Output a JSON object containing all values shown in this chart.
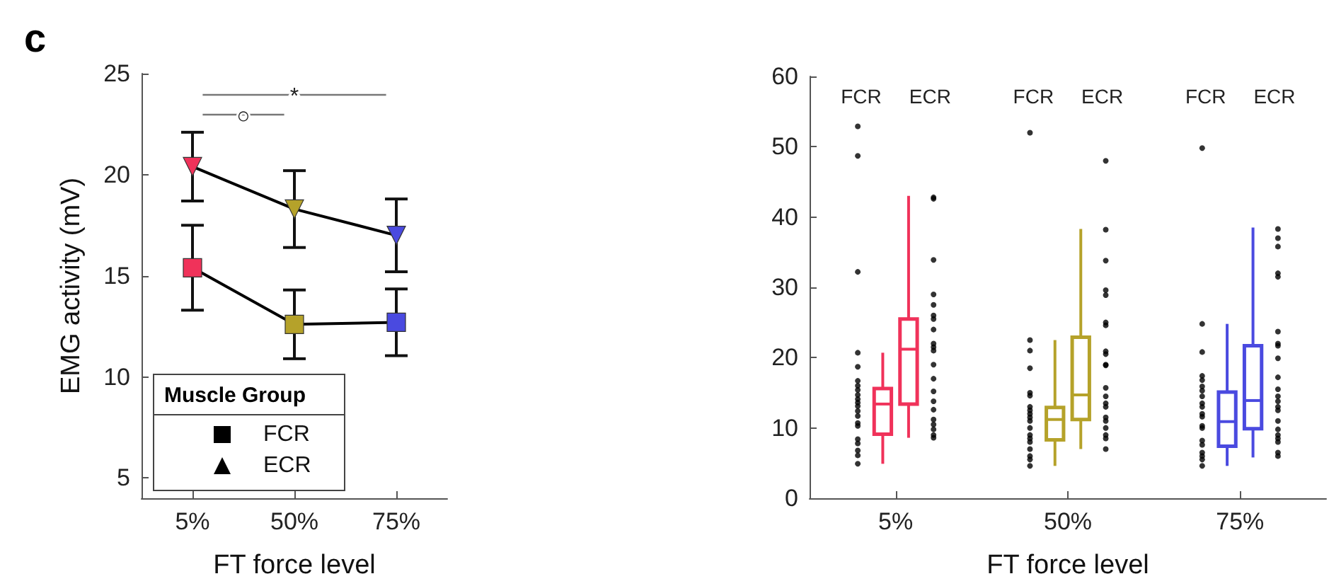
{
  "chart_data": [
    {
      "type": "line",
      "title": "c",
      "categories": [
        "5%",
        "50%",
        "75%"
      ],
      "xlabel": "FT force level",
      "ylabel": "EMG activity (mV)",
      "ylim": [
        4,
        25
      ],
      "yticks": [
        5,
        10,
        15,
        20,
        25
      ],
      "grid": false,
      "legend": "bottom left",
      "legend_title": "Muscle Group",
      "line_style": "solid",
      "annotations": [
        "*",
        "○"
      ],
      "series": [
        {
          "name": "FCR",
          "marker": "square",
          "color": "#000000",
          "colors": [
            "#f0325a",
            "#b5a22a",
            "#4a4ae0"
          ],
          "values": [
            15.4,
            12.6,
            12.7
          ],
          "errors": [
            2.1,
            1.7,
            1.65
          ]
        },
        {
          "name": "ECR",
          "marker": "triangle",
          "color": "#000000",
          "colors": [
            "#f0325a",
            "#b5a22a",
            "#4a4ae0"
          ],
          "values": [
            20.4,
            18.3,
            17.0
          ],
          "errors": [
            1.7,
            1.9,
            1.8
          ]
        }
      ]
    },
    {
      "type": "box",
      "categories": [
        "5%",
        "50%",
        "75%"
      ],
      "xlabel": "FT force level",
      "annotations": [
        "FCR",
        "ECR",
        "FCR",
        "ECR",
        "FCR",
        "ECR"
      ],
      "ylim": [
        0,
        60
      ],
      "yticks": [
        0,
        10,
        20,
        30,
        40,
        50,
        60
      ],
      "grid": false,
      "legend": false,
      "series": [
        {
          "colors": [
            "#f0325a",
            "#b5a22a",
            "#4a4ae0"
          ],
          "boxes": [
            {
              "low": 4.9,
              "q1": 9.1,
              "median": 13.4,
              "q3": 15.6,
              "high": 20.7
            },
            {
              "low": 4.6,
              "q1": 8.3,
              "median": 11.2,
              "q3": 12.9,
              "high": 22.5
            },
            {
              "low": 4.6,
              "q1": 7.4,
              "median": 10.9,
              "q3": 15.1,
              "high": 24.8
            }
          ]
        },
        {
          "colors": [
            "#f0325a",
            "#b5a22a",
            "#4a4ae0"
          ],
          "boxes": [
            {
              "low": 8.6,
              "q1": 13.4,
              "median": 21.2,
              "q3": 25.5,
              "high": 43.0
            },
            {
              "low": 7.0,
              "q1": 11.2,
              "median": 14.7,
              "q3": 22.9,
              "high": 38.3
            },
            {
              "low": 5.8,
              "q1": 9.9,
              "median": 13.9,
              "q3": 21.7,
              "high": 38.5
            }
          ]
        },
        {
          "type": "scatter",
          "color": "#000000",
          "x": [
            "5%",
            "5%",
            "5%",
            "5%",
            "5%",
            "5%",
            "5%",
            "5%",
            "5%",
            "5%",
            "5%",
            "5%",
            "5%",
            "5%",
            "5%",
            "5%",
            "5%",
            "5%",
            "5%",
            "5%",
            "5%",
            "50%",
            "50%",
            "50%",
            "50%",
            "50%",
            "50%",
            "50%",
            "50%",
            "50%",
            "50%",
            "50%",
            "50%",
            "50%",
            "50%",
            "50%",
            "50%",
            "50%",
            "50%",
            "50%",
            "75%",
            "75%",
            "75%",
            "75%",
            "75%",
            "75%",
            "75%",
            "75%",
            "75%",
            "75%",
            "75%",
            "75%",
            "75%",
            "75%",
            "75%",
            "75%",
            "75%",
            "75%",
            "75%",
            "75%"
          ],
          "values": [
            52.9,
            48.7,
            32.2,
            20.7,
            18.7,
            16.7,
            16.0,
            15.4,
            14.7,
            14.1,
            13.6,
            13.1,
            12.4,
            11.7,
            10.7,
            10.3,
            8.4,
            7.8,
            6.8,
            6.1,
            4.9,
            52,
            22.5,
            21,
            18.5,
            15,
            14.6,
            13,
            12.5,
            12,
            11.5,
            11,
            10,
            9,
            8.5,
            8,
            7,
            6,
            5.5,
            4.6,
            49.8,
            24.8,
            20.8,
            17.4,
            16.8,
            15.9,
            15.3,
            14.5,
            13.5,
            13,
            12,
            11.6,
            10.3,
            10,
            8.2,
            7.6,
            6.5,
            6,
            5.5,
            4.6
          ]
        },
        {
          "type": "scatter",
          "color": "#000000",
          "x": [
            "5%",
            "5%",
            "5%",
            "5%",
            "5%",
            "5%",
            "5%",
            "5%",
            "5%",
            "5%",
            "5%",
            "5%",
            "5%",
            "5%",
            "5%",
            "5%",
            "5%",
            "5%",
            "5%",
            "5%",
            "5%",
            "50%",
            "50%",
            "50%",
            "50%",
            "50%",
            "50%",
            "50%",
            "50%",
            "50%",
            "50%",
            "50%",
            "50%",
            "50%",
            "50%",
            "50%",
            "50%",
            "50%",
            "50%",
            "50%",
            "50%",
            "50%",
            "75%",
            "75%",
            "75%",
            "75%",
            "75%",
            "75%",
            "75%",
            "75%",
            "75%",
            "75%",
            "75%",
            "75%",
            "75%",
            "75%",
            "75%",
            "75%",
            "75%",
            "75%",
            "75%",
            "75%",
            "75%",
            "75%"
          ],
          "values": [
            42.8,
            42.6,
            33.9,
            29,
            27.5,
            26,
            25.5,
            24,
            22,
            21.5,
            21,
            19,
            17,
            15.2,
            13.8,
            12.6,
            11.2,
            10.5,
            9.8,
            9,
            8.6,
            48,
            38.2,
            33.8,
            29.6,
            28.9,
            25,
            24.6,
            20.9,
            20.5,
            19,
            18.9,
            15.7,
            14.5,
            13.5,
            13,
            11.5,
            11,
            10,
            9,
            8.5,
            7,
            38.3,
            37,
            35.8,
            32,
            31.5,
            23.7,
            22,
            21.7,
            19.9,
            17.2,
            15.5,
            14.5,
            13.8,
            13,
            12.5,
            11,
            9.8,
            9,
            8.5,
            8,
            6.5,
            6
          ]
        }
      ]
    }
  ]
}
